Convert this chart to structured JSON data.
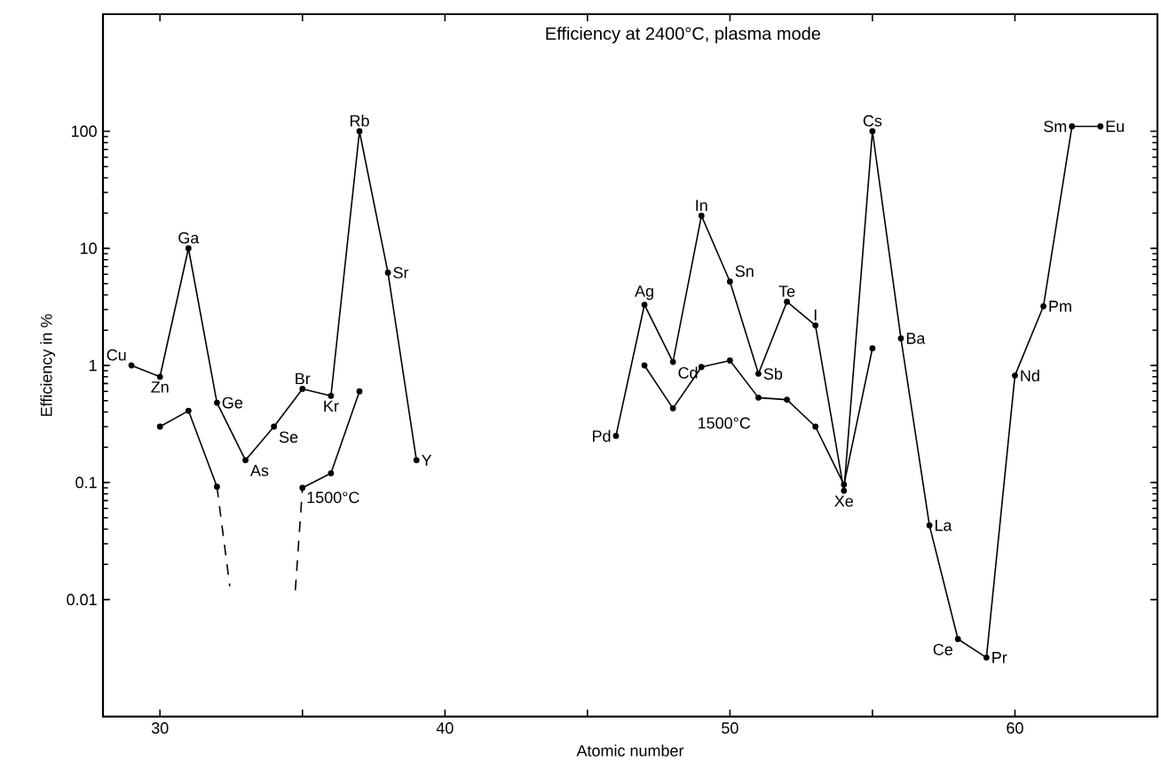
{
  "chart_data": {
    "type": "line",
    "title": "Efficiency at 2400°C, plasma mode",
    "xlabel": "Atomic number",
    "ylabel": "Efficiency in %",
    "log": "y",
    "xlim": [
      28,
      65
    ],
    "ylim": [
      0.001,
      1000
    ],
    "xticks": [
      30,
      {
        "value": 35,
        "label": null
      },
      40,
      {
        "value": 45,
        "label": null
      },
      50,
      {
        "value": 55,
        "label": null
      },
      60
    ],
    "yticks": [
      0.01,
      0.1,
      1,
      10,
      100
    ],
    "series": [
      {
        "color": "#000000",
        "marker": "circle",
        "line_style": "solid",
        "x": [
          29,
          30,
          31,
          32,
          33,
          34,
          35,
          36,
          37,
          38,
          39,
          40,
          41,
          42,
          43,
          44,
          45,
          46,
          47,
          48,
          49,
          50,
          51,
          52,
          53,
          54,
          55,
          56,
          57,
          58,
          59,
          60,
          61,
          62,
          63
        ],
        "values": [
          1.0,
          0.8,
          10,
          0.48,
          0.155,
          0.3,
          0.63,
          0.55,
          100,
          6.2,
          0.155,
          null,
          null,
          null,
          null,
          null,
          null,
          0.25,
          3.3,
          1.07,
          19,
          5.2,
          0.85,
          3.5,
          2.2,
          0.085,
          100,
          1.7,
          0.043,
          0.0046,
          0.0032,
          0.82,
          3.2,
          110,
          110
        ]
      },
      {
        "name": "1500°C",
        "color": "#000000",
        "marker": "circle",
        "line_style": "solid",
        "x": [
          30,
          31,
          32,
          33,
          34,
          35,
          36,
          37,
          38,
          39,
          40,
          41,
          42,
          43,
          44,
          45,
          46,
          47,
          48,
          49,
          50,
          51,
          52,
          53,
          54,
          55
        ],
        "values": [
          0.3,
          0.41,
          0.092,
          null,
          null,
          0.09,
          0.12,
          0.6,
          null,
          null,
          null,
          null,
          null,
          null,
          null,
          null,
          null,
          1.0,
          0.43,
          0.97,
          1.1,
          0.53,
          0.51,
          0.3,
          0.096,
          1.4
        ]
      },
      {
        "color": "#000000",
        "marker": "none",
        "line_style": "dashed",
        "x": [
          32,
          32.45,
          33.6,
          34.75,
          35
        ],
        "values": [
          0.092,
          0.013,
          null,
          0.012,
          0.09
        ]
      }
    ],
    "annotations": [
      {
        "text": "Cu",
        "x": 29,
        "y": 1.0
      },
      {
        "text": "Zn",
        "x": 30,
        "y": 0.8
      },
      {
        "text": "Ga",
        "x": 31,
        "y": 10
      },
      {
        "text": "Ge",
        "x": 32,
        "y": 0.48
      },
      {
        "text": "As",
        "x": 33,
        "y": 0.155
      },
      {
        "text": "Se",
        "x": 34,
        "y": 0.3
      },
      {
        "text": "Br",
        "x": 35,
        "y": 0.63
      },
      {
        "text": "Kr",
        "x": 36,
        "y": 0.55
      },
      {
        "text": "Rb",
        "x": 37,
        "y": 100
      },
      {
        "text": "Sr",
        "x": 38,
        "y": 6.2
      },
      {
        "text": "Y",
        "x": 39,
        "y": 0.155
      },
      {
        "text": "Pd",
        "x": 46,
        "y": 0.25
      },
      {
        "text": "Ag",
        "x": 47,
        "y": 3.3
      },
      {
        "text": "Cd",
        "x": 48,
        "y": 1.07
      },
      {
        "text": "In",
        "x": 49,
        "y": 19
      },
      {
        "text": "Sn",
        "x": 50,
        "y": 5.2
      },
      {
        "text": "Sb",
        "x": 51,
        "y": 0.85
      },
      {
        "text": "Te",
        "x": 52,
        "y": 3.5
      },
      {
        "text": "I",
        "x": 53,
        "y": 2.2
      },
      {
        "text": "Xe",
        "x": 54,
        "y": 0.085
      },
      {
        "text": "Cs",
        "x": 55,
        "y": 100
      },
      {
        "text": "Ba",
        "x": 56,
        "y": 1.7
      },
      {
        "text": "La",
        "x": 57,
        "y": 0.043
      },
      {
        "text": "Ce",
        "x": 58,
        "y": 0.0046
      },
      {
        "text": "Pr",
        "x": 59,
        "y": 0.0032
      },
      {
        "text": "Nd",
        "x": 60,
        "y": 0.82
      },
      {
        "text": "Pm",
        "x": 61,
        "y": 3.2
      },
      {
        "text": "Sm",
        "x": 62,
        "y": 110
      },
      {
        "text": "Eu",
        "x": 63,
        "y": 110
      },
      "1500°C"
    ]
  }
}
